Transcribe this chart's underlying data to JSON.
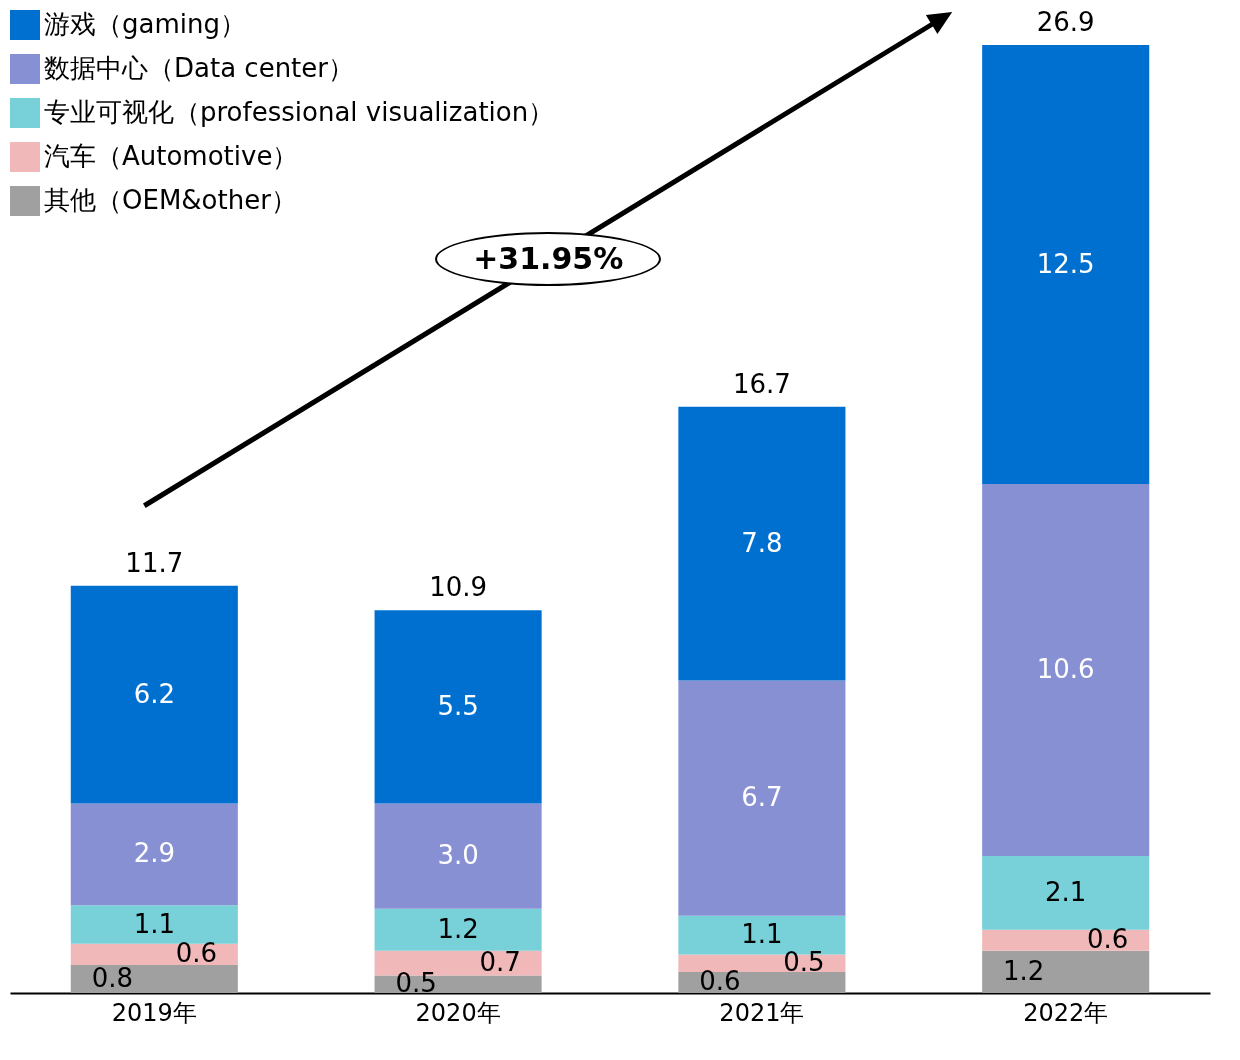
{
  "chart_data": {
    "type": "bar",
    "stacked": true,
    "categories": [
      "2019年",
      "2020年",
      "2021年",
      "2022年"
    ],
    "series": [
      {
        "name": "其他（OEM&other）",
        "color": "#a0a0a0",
        "values": [
          0.8,
          0.5,
          0.6,
          1.2
        ],
        "value_labels": [
          "0.8",
          "0.5",
          "0.6",
          "1.2"
        ]
      },
      {
        "name": "汽车（Automotive）",
        "color": "#f0b8b8",
        "values": [
          0.6,
          0.7,
          0.5,
          0.6
        ],
        "value_labels": [
          "0.6",
          "0.7",
          "0.5",
          "0.6"
        ]
      },
      {
        "name": "专业可视化（professional visualization）",
        "color": "#78d0d8",
        "values": [
          1.1,
          1.2,
          1.1,
          2.1
        ],
        "value_labels": [
          "1.1",
          "1.2",
          "1.1",
          "2.1"
        ]
      },
      {
        "name": "数据中心（Data center）",
        "color": "#8890d4",
        "values": [
          2.9,
          3.0,
          6.7,
          10.6
        ],
        "value_labels": [
          "2.9",
          "3.0",
          "6.7",
          "10.6"
        ]
      },
      {
        "name": "游戏（gaming）",
        "color": "#0070d0",
        "values": [
          6.2,
          5.5,
          7.8,
          12.5
        ],
        "value_labels": [
          "6.2",
          "5.5",
          "7.8",
          "12.5"
        ]
      }
    ],
    "totals": [
      "11.7",
      "10.9",
      "16.7",
      "26.9"
    ],
    "legend": "top left",
    "tick_labels": "x",
    "annotations": [
      "+31.95%"
    ]
  }
}
